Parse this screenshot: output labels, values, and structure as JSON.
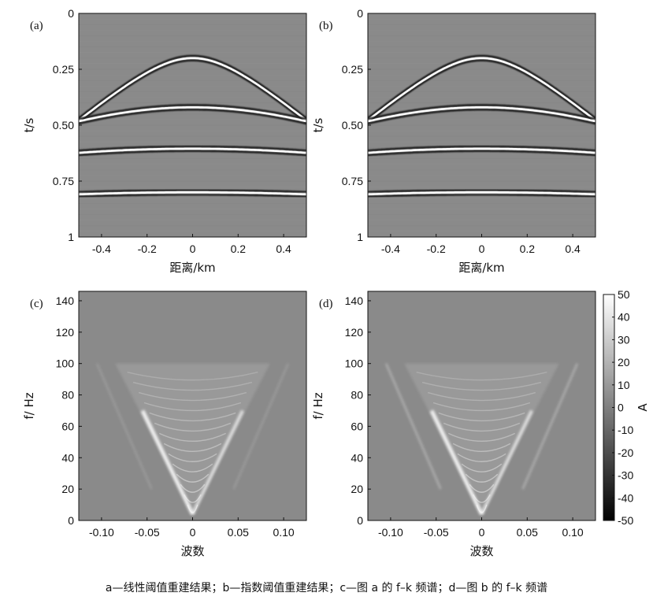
{
  "figure": {
    "caption": "a—线性阈值重建结果；b—指数阈值重建结果；c—图 a 的 f–k 频谱；d—图 b 的 f–k 频谱"
  },
  "chart_data": [
    {
      "panel_label": "(a)",
      "type": "heatmap",
      "plot": "seismic gather",
      "xlabel": "距离/km",
      "ylabel": "t/s",
      "xlim": [
        -0.5,
        0.5
      ],
      "ylim": [
        1,
        0
      ],
      "x_ticks": [
        "-0.4",
        "-0.2",
        "0",
        "0.2",
        "0.4"
      ],
      "y_ticks": [
        "0",
        "0.25",
        "0.50",
        "0.75",
        "1"
      ],
      "events_t0_s": [
        0.2,
        0.42,
        0.605,
        0.8
      ],
      "colormap": "gray"
    },
    {
      "panel_label": "(b)",
      "type": "heatmap",
      "plot": "seismic gather",
      "xlabel": "距离/km",
      "ylabel": "t/s",
      "xlim": [
        -0.5,
        0.5
      ],
      "ylim": [
        1,
        0
      ],
      "x_ticks": [
        "-0.4",
        "-0.2",
        "0",
        "0.2",
        "0.4"
      ],
      "y_ticks": [
        "0",
        "0.25",
        "0.50",
        "0.75",
        "1"
      ],
      "events_t0_s": [
        0.2,
        0.42,
        0.605,
        0.8
      ],
      "colormap": "gray"
    },
    {
      "panel_label": "(c)",
      "type": "heatmap",
      "plot": "f-k spectrum",
      "xlabel": "波数",
      "ylabel": "f/ Hz",
      "xlim": [
        -0.125,
        0.125
      ],
      "ylim": [
        0,
        146
      ],
      "x_ticks": [
        "-0.10",
        "-0.05",
        "0",
        "0.05",
        "0.10"
      ],
      "y_ticks": [
        "0",
        "20",
        "40",
        "60",
        "80",
        "100",
        "120",
        "140"
      ],
      "colormap": "gray"
    },
    {
      "panel_label": "(d)",
      "type": "heatmap",
      "plot": "f-k spectrum",
      "xlabel": "波数",
      "ylabel": "f/ Hz",
      "xlim": [
        -0.125,
        0.125
      ],
      "ylim": [
        0,
        146
      ],
      "x_ticks": [
        "-0.10",
        "-0.05",
        "0",
        "0.05",
        "0.10"
      ],
      "y_ticks": [
        "0",
        "20",
        "40",
        "60",
        "80",
        "100",
        "120",
        "140"
      ],
      "colormap": "gray"
    }
  ],
  "colorbar": {
    "label": "A",
    "ticks": [
      "50",
      "40",
      "30",
      "20",
      "10",
      "0",
      "-10",
      "-20",
      "-30",
      "-40",
      "-50"
    ],
    "range": [
      -50,
      50
    ]
  }
}
